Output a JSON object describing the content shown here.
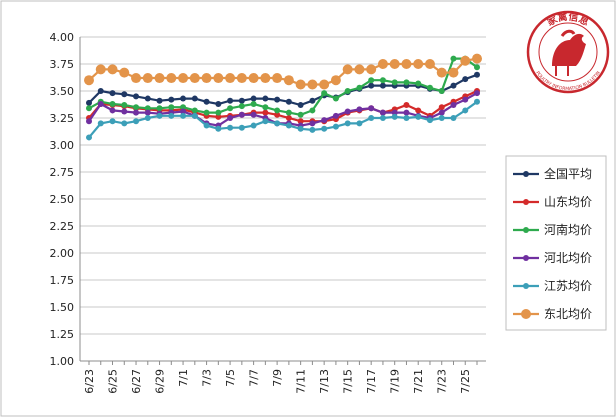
{
  "logo": {
    "text_top": "家禽信息",
    "text_bottom": "POULTRY INFORMATION BULLETIN",
    "color": "#c8282e"
  },
  "chart_data": {
    "type": "line",
    "title": "",
    "xlabel": "",
    "ylabel": "",
    "ylim": [
      1.0,
      4.0
    ],
    "ytick_step": 0.25,
    "grid": "horizontal",
    "legend_position": "right",
    "x": [
      "6/23",
      "6/24",
      "6/25",
      "6/26",
      "6/27",
      "6/28",
      "6/29",
      "6/30",
      "7/1",
      "7/2",
      "7/3",
      "7/4",
      "7/5",
      "7/6",
      "7/7",
      "7/8",
      "7/9",
      "7/10",
      "7/11",
      "7/12",
      "7/13",
      "7/14",
      "7/15",
      "7/16",
      "7/17",
      "7/18",
      "7/19",
      "7/20",
      "7/21",
      "7/22",
      "7/23",
      "7/24",
      "7/25",
      "7/26"
    ],
    "xtick_labels": [
      "6/23",
      "6/25",
      "6/27",
      "6/29",
      "7/1",
      "7/3",
      "7/5",
      "7/7",
      "7/9",
      "7/11",
      "7/13",
      "7/15",
      "7/17",
      "7/19",
      "7/21",
      "7/23",
      "7/25"
    ],
    "series": [
      {
        "name": "全国平均",
        "color": "#1f3864",
        "marker_size": 3,
        "values": [
          3.39,
          3.5,
          3.48,
          3.47,
          3.45,
          3.43,
          3.41,
          3.42,
          3.43,
          3.43,
          3.4,
          3.38,
          3.41,
          3.41,
          3.43,
          3.43,
          3.42,
          3.4,
          3.37,
          3.41,
          3.46,
          3.44,
          3.49,
          3.52,
          3.55,
          3.55,
          3.55,
          3.55,
          3.55,
          3.52,
          3.5,
          3.55,
          3.61,
          3.65
        ]
      },
      {
        "name": "山东均价",
        "color": "#d42a2a",
        "marker_size": 3,
        "values": [
          3.25,
          3.38,
          3.37,
          3.36,
          3.34,
          3.33,
          3.32,
          3.32,
          3.33,
          3.3,
          3.27,
          3.26,
          3.27,
          3.28,
          3.3,
          3.3,
          3.28,
          3.25,
          3.22,
          3.22,
          3.22,
          3.24,
          3.3,
          3.32,
          3.34,
          3.3,
          3.33,
          3.37,
          3.32,
          3.27,
          3.35,
          3.4,
          3.45,
          3.5
        ]
      },
      {
        "name": "河南均价",
        "color": "#2eaa4e",
        "marker_size": 3,
        "values": [
          3.34,
          3.4,
          3.38,
          3.37,
          3.35,
          3.34,
          3.34,
          3.35,
          3.35,
          3.32,
          3.3,
          3.3,
          3.34,
          3.36,
          3.38,
          3.35,
          3.32,
          3.3,
          3.28,
          3.32,
          3.48,
          3.43,
          3.5,
          3.53,
          3.6,
          3.6,
          3.58,
          3.58,
          3.57,
          3.53,
          3.5,
          3.8,
          3.8,
          3.72
        ]
      },
      {
        "name": "河北均价",
        "color": "#7030a0",
        "marker_size": 3,
        "values": [
          3.22,
          3.38,
          3.32,
          3.31,
          3.3,
          3.3,
          3.29,
          3.3,
          3.31,
          3.27,
          3.2,
          3.18,
          3.25,
          3.28,
          3.28,
          3.25,
          3.2,
          3.2,
          3.18,
          3.2,
          3.23,
          3.27,
          3.31,
          3.33,
          3.34,
          3.3,
          3.3,
          3.3,
          3.27,
          3.25,
          3.3,
          3.37,
          3.42,
          3.48
        ]
      },
      {
        "name": "江苏均价",
        "color": "#3c9fb8",
        "marker_size": 3,
        "values": [
          3.07,
          3.2,
          3.22,
          3.2,
          3.22,
          3.25,
          3.27,
          3.27,
          3.27,
          3.27,
          3.18,
          3.15,
          3.16,
          3.16,
          3.18,
          3.22,
          3.2,
          3.18,
          3.15,
          3.14,
          3.15,
          3.17,
          3.2,
          3.2,
          3.25,
          3.25,
          3.26,
          3.25,
          3.26,
          3.23,
          3.25,
          3.25,
          3.32,
          3.4
        ]
      },
      {
        "name": "东北均价",
        "color": "#e3944a",
        "marker_size": 5,
        "values": [
          3.6,
          3.7,
          3.7,
          3.67,
          3.62,
          3.62,
          3.62,
          3.62,
          3.62,
          3.62,
          3.62,
          3.62,
          3.62,
          3.62,
          3.62,
          3.62,
          3.62,
          3.6,
          3.56,
          3.56,
          3.56,
          3.6,
          3.7,
          3.7,
          3.7,
          3.75,
          3.75,
          3.75,
          3.75,
          3.75,
          3.67,
          3.67,
          3.78,
          3.8
        ]
      }
    ]
  }
}
